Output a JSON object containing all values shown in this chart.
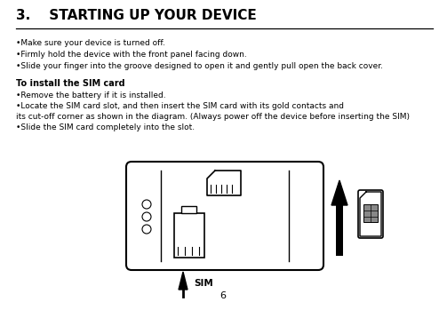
{
  "title": "3.    STARTING UP YOUR DEVICE",
  "bullets_intro": [
    "•Make sure your device is turned off.",
    "•Firmly hold the device with the front panel facing down.",
    "•Slide your finger into the groove designed to open it and gently pull open the back cover."
  ],
  "section_bold": "To install the SIM card",
  "bullets_sim": [
    "•Remove the battery if it is installed.",
    "•Locate the SIM card slot, and then insert the SIM card with its gold contacts and",
    "its cut-off corner as shown in the diagram. (Always power off the device before inserting the SIM)",
    "•Slide the SIM card completely into the slot."
  ],
  "page_number": "6",
  "bg_color": "#ffffff",
  "text_color": "#000000",
  "title_fontsize": 11,
  "body_fontsize": 6.5,
  "bold_fontsize": 7.0
}
